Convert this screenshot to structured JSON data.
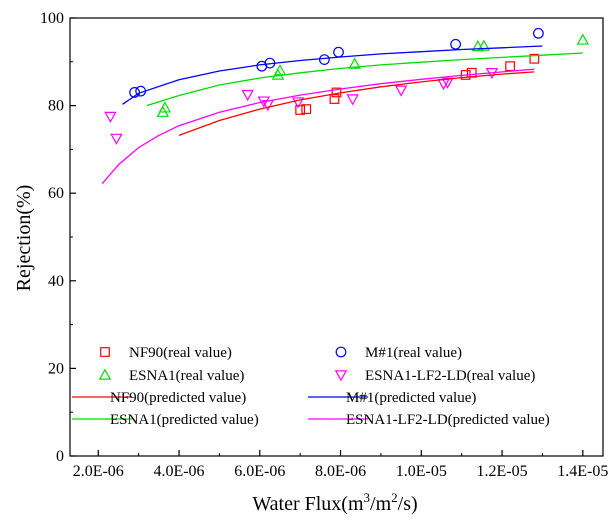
{
  "chart_data": {
    "type": "scatter",
    "title": "",
    "xlabel": {
      "main": "Water Flux(m",
      "sup1": "3",
      "mid": "/m",
      "sup2": "2",
      "end": "/s)"
    },
    "ylabel": "Rejection(%)",
    "xlim": [
      1.3e-06,
      1.45e-05
    ],
    "ylim": [
      0,
      100
    ],
    "x_ticks": [
      2e-06,
      4e-06,
      6e-06,
      8e-06,
      1e-05,
      1.2e-05,
      1.4e-05
    ],
    "x_tick_labels": [
      "2.0E-06",
      "4.0E-06",
      "6.0E-06",
      "8.0E-06",
      "1.0E-05",
      "1.2E-05",
      "1.4E-05"
    ],
    "y_ticks": [
      0,
      20,
      40,
      60,
      80,
      100
    ],
    "y_tick_labels": [
      "0",
      "20",
      "40",
      "60",
      "80",
      "100"
    ],
    "grid": false,
    "legend_position": "bottom",
    "series": [
      {
        "name": "NF90(real value)",
        "kind": "scatter",
        "marker": "square",
        "color": "#ff0000",
        "x": [
          7e-06,
          7.15e-06,
          7.85e-06,
          7.9e-06,
          1.11e-05,
          1.125e-05,
          1.22e-05,
          1.28e-05
        ],
        "y": [
          79.0,
          79.2,
          81.5,
          83.0,
          87.0,
          87.5,
          89.0,
          90.7
        ]
      },
      {
        "name": "M#1(real value)",
        "kind": "scatter",
        "marker": "circle",
        "color": "#0000ff",
        "x": [
          2.9e-06,
          3.05e-06,
          6.05e-06,
          6.25e-06,
          7.6e-06,
          7.95e-06,
          1.085e-05,
          1.29e-05
        ],
        "y": [
          83.0,
          83.3,
          89.0,
          89.7,
          90.5,
          92.2,
          94.0,
          96.5
        ]
      },
      {
        "name": "ESNA1(real value)",
        "kind": "scatter",
        "marker": "triangle-up",
        "color": "#00dd00",
        "x": [
          3.6e-06,
          3.65e-06,
          6.45e-06,
          6.5e-06,
          8.35e-06,
          1.14e-05,
          1.155e-05,
          1.4e-05
        ],
        "y": [
          78.5,
          79.5,
          87.0,
          88.0,
          89.5,
          93.5,
          93.6,
          95.0
        ]
      },
      {
        "name": "ESNA1-LF2-LD(real value)",
        "kind": "scatter",
        "marker": "triangle-down",
        "color": "#ff00ff",
        "x": [
          2.3e-06,
          2.45e-06,
          5.7e-06,
          6.1e-06,
          6.2e-06,
          6.95e-06,
          8.3e-06,
          9.5e-06,
          1.055e-05,
          1.065e-05,
          1.175e-05
        ],
        "y": [
          77.5,
          72.5,
          82.5,
          81.0,
          80.2,
          80.8,
          81.5,
          83.5,
          85.0,
          85.3,
          87.5
        ]
      },
      {
        "name": "NF90(predicted value)",
        "kind": "line",
        "color": "#ff0000",
        "x": [
          4e-06,
          5e-06,
          6e-06,
          7e-06,
          8e-06,
          9e-06,
          1e-05,
          1.1e-05,
          1.2e-05,
          1.28e-05
        ],
        "y": [
          73.2,
          76.6,
          79.2,
          81.3,
          82.9,
          84.3,
          85.4,
          86.4,
          87.2,
          87.7
        ]
      },
      {
        "name": "M#1(predicted value)",
        "kind": "line",
        "color": "#0000ff",
        "x": [
          2.6e-06,
          3e-06,
          4e-06,
          5e-06,
          6e-06,
          7e-06,
          8e-06,
          9e-06,
          1e-05,
          1.1e-05,
          1.2e-05,
          1.3e-05
        ],
        "y": [
          80.3,
          82.8,
          85.9,
          87.9,
          89.3,
          90.3,
          91.1,
          91.8,
          92.3,
          92.8,
          93.2,
          93.6
        ]
      },
      {
        "name": "ESNA1(predicted value)",
        "kind": "line",
        "color": "#00dd00",
        "x": [
          3.2e-06,
          4e-06,
          5e-06,
          6e-06,
          7e-06,
          8e-06,
          9e-06,
          1e-05,
          1.1e-05,
          1.2e-05,
          1.3e-05,
          1.4e-05
        ],
        "y": [
          80.0,
          82.3,
          84.7,
          86.3,
          87.5,
          88.5,
          89.3,
          89.9,
          90.5,
          91.0,
          91.5,
          92.0
        ]
      },
      {
        "name": "ESNA1-LF2-LD(predicted value)",
        "kind": "line",
        "color": "#ff00ff",
        "x": [
          2.1e-06,
          2.5e-06,
          3e-06,
          3.5e-06,
          4e-06,
          5e-06,
          6e-06,
          7e-06,
          8e-06,
          9e-06,
          1e-05,
          1.1e-05,
          1.2e-05,
          1.28e-05
        ],
        "y": [
          62.2,
          66.5,
          70.4,
          73.2,
          75.4,
          78.5,
          80.7,
          82.4,
          83.8,
          85.0,
          86.0,
          86.9,
          87.7,
          88.3
        ]
      }
    ]
  }
}
